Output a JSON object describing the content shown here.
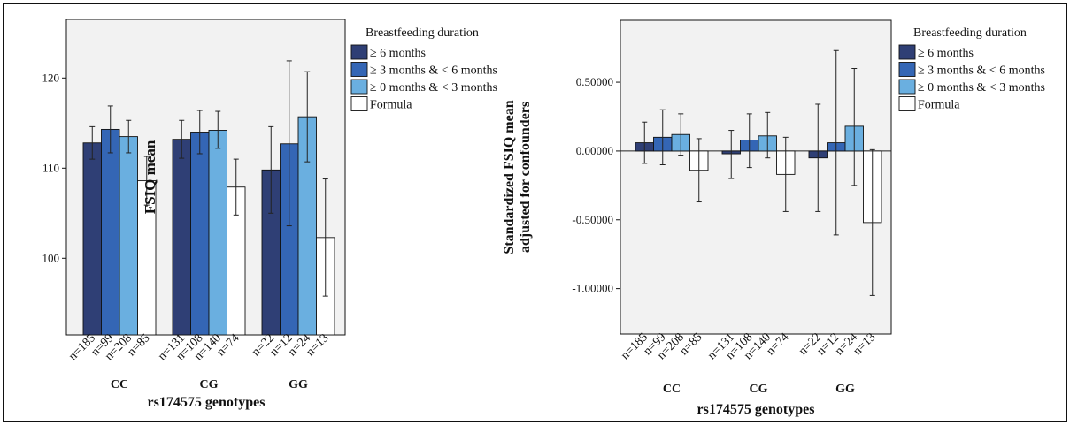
{
  "colors": {
    "ge6": "#2f3f75",
    "ge3_lt6": "#3466b5",
    "ge0_lt3": "#6aafe0",
    "formula": "#ffffff",
    "plot_bg": "#f2f2f2",
    "frame": "#111111"
  },
  "chart_data": [
    {
      "type": "bar",
      "xlabel": "rs174575 genotypes",
      "ylabel": "FSIQ mean",
      "ylim": [
        91.5,
        126.5
      ],
      "yticks": [
        100,
        110,
        120
      ],
      "ytick_labels": [
        "100",
        "110",
        "120"
      ],
      "categories": [
        "CC",
        "CG",
        "GG"
      ],
      "legend": {
        "title": "Breastfeeding duration",
        "placement": "outside-right"
      },
      "series": [
        {
          "name": "≥ 6 months",
          "color_key": "ge6",
          "values": [
            112.8,
            113.2,
            109.8
          ],
          "ci_low": [
            111.0,
            111.1,
            105.0
          ],
          "ci_high": [
            114.6,
            115.3,
            114.6
          ],
          "n": [
            "n=185",
            "n=131",
            "n=22"
          ]
        },
        {
          "name": "≥ 3 months &  < 6 months",
          "color_key": "ge3_lt6",
          "values": [
            114.3,
            114.0,
            112.7
          ],
          "ci_low": [
            111.7,
            111.6,
            103.6
          ],
          "ci_high": [
            116.9,
            116.4,
            121.9
          ],
          "n": [
            "n=99",
            "n=108",
            "n=12"
          ]
        },
        {
          "name": "≥ 0 months &  < 3 months",
          "color_key": "ge0_lt3",
          "values": [
            113.5,
            114.2,
            115.7
          ],
          "ci_low": [
            111.7,
            112.2,
            110.7
          ],
          "ci_high": [
            115.3,
            116.3,
            120.7
          ],
          "n": [
            "n=208",
            "n=140",
            "n=24"
          ]
        },
        {
          "name": "Formula",
          "color_key": "formula",
          "values": [
            108.6,
            107.9,
            102.3
          ],
          "ci_low": [
            105.9,
            104.8,
            95.8
          ],
          "ci_high": [
            111.3,
            111.0,
            108.8
          ],
          "n": [
            "n=85",
            "n=74",
            "n=13"
          ]
        }
      ]
    },
    {
      "type": "bar",
      "xlabel": "rs174575 genotypes",
      "ylabel": "Standardized FSIQ mean adjusted for confounders",
      "ylim": [
        -1.33,
        0.95
      ],
      "yticks": [
        -1.0,
        -0.5,
        0.0,
        0.5
      ],
      "ytick_labels": [
        "-1.00000",
        "-0.50000",
        "0.00000",
        "0.50000"
      ],
      "categories": [
        "CC",
        "CG",
        "GG"
      ],
      "legend": {
        "title": "Breastfeeding duration",
        "placement": "outside-right"
      },
      "series": [
        {
          "name": "≥ 6 months",
          "color_key": "ge6",
          "values": [
            0.06,
            -0.02,
            -0.05
          ],
          "ci_low": [
            -0.09,
            -0.2,
            -0.44
          ],
          "ci_high": [
            0.21,
            0.15,
            0.34
          ],
          "n": [
            "n=185",
            "n=131",
            "n=22"
          ]
        },
        {
          "name": "≥ 3 months &  < 6 months",
          "color_key": "ge3_lt6",
          "values": [
            0.1,
            0.08,
            0.06
          ],
          "ci_low": [
            -0.1,
            -0.12,
            -0.61
          ],
          "ci_high": [
            0.3,
            0.27,
            0.73
          ],
          "n": [
            "n=99",
            "n=108",
            "n=12"
          ]
        },
        {
          "name": "≥ 0 months &  < 3 months",
          "color_key": "ge0_lt3",
          "values": [
            0.12,
            0.11,
            0.18
          ],
          "ci_low": [
            -0.03,
            -0.05,
            -0.25
          ],
          "ci_high": [
            0.27,
            0.28,
            0.6
          ],
          "n": [
            "n=208",
            "n=140",
            "n=24"
          ]
        },
        {
          "name": "Formula",
          "color_key": "formula",
          "values": [
            -0.14,
            -0.17,
            -0.52
          ],
          "ci_low": [
            -0.37,
            -0.44,
            -1.05
          ],
          "ci_high": [
            0.09,
            0.1,
            0.01
          ],
          "n": [
            "n=85",
            "n=74",
            "n=13"
          ]
        }
      ]
    }
  ]
}
